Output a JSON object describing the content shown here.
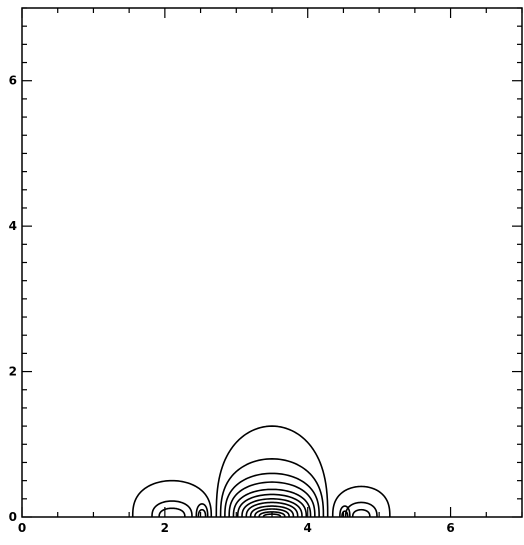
{
  "chart_data": {
    "type": "contour",
    "title": "",
    "xlabel": "",
    "ylabel": "",
    "xlim": [
      0,
      7
    ],
    "ylim": [
      0,
      7
    ],
    "x_ticks": [
      0,
      2,
      4,
      6
    ],
    "x_tick_labels": [
      "0",
      "2",
      "4",
      "6"
    ],
    "y_ticks": [
      0,
      2,
      4,
      6
    ],
    "y_tick_labels": [
      "0",
      "2",
      "4",
      "6"
    ],
    "x_minor_step": 0.5,
    "y_minor_step": 0.25,
    "grid": false,
    "line_color": "#000000",
    "contours": [
      {
        "name": "center-lobe",
        "center_x": 3.5,
        "half_widths": [
          0.78,
          0.72,
          0.66,
          0.6,
          0.54,
          0.48,
          0.42,
          0.36,
          0.3,
          0.24,
          0.18,
          0.12
        ],
        "heights": [
          1.25,
          0.8,
          0.6,
          0.48,
          0.38,
          0.31,
          0.25,
          0.2,
          0.15,
          0.11,
          0.07,
          0.04
        ]
      },
      {
        "name": "left-lobe",
        "center_x": 2.1,
        "half_widths": [
          0.55,
          0.28,
          0.18
        ],
        "heights": [
          0.5,
          0.22,
          0.12
        ]
      },
      {
        "name": "left-core",
        "center_x": 2.52,
        "half_widths": [
          0.08,
          0.05
        ],
        "heights": [
          0.18,
          0.1
        ]
      },
      {
        "name": "right-lobe",
        "center_x": 4.75,
        "half_widths": [
          0.4,
          0.22,
          0.12
        ],
        "heights": [
          0.42,
          0.2,
          0.1
        ]
      },
      {
        "name": "right-core",
        "center_x": 4.52,
        "half_widths": [
          0.07,
          0.04
        ],
        "heights": [
          0.15,
          0.08
        ]
      }
    ]
  }
}
